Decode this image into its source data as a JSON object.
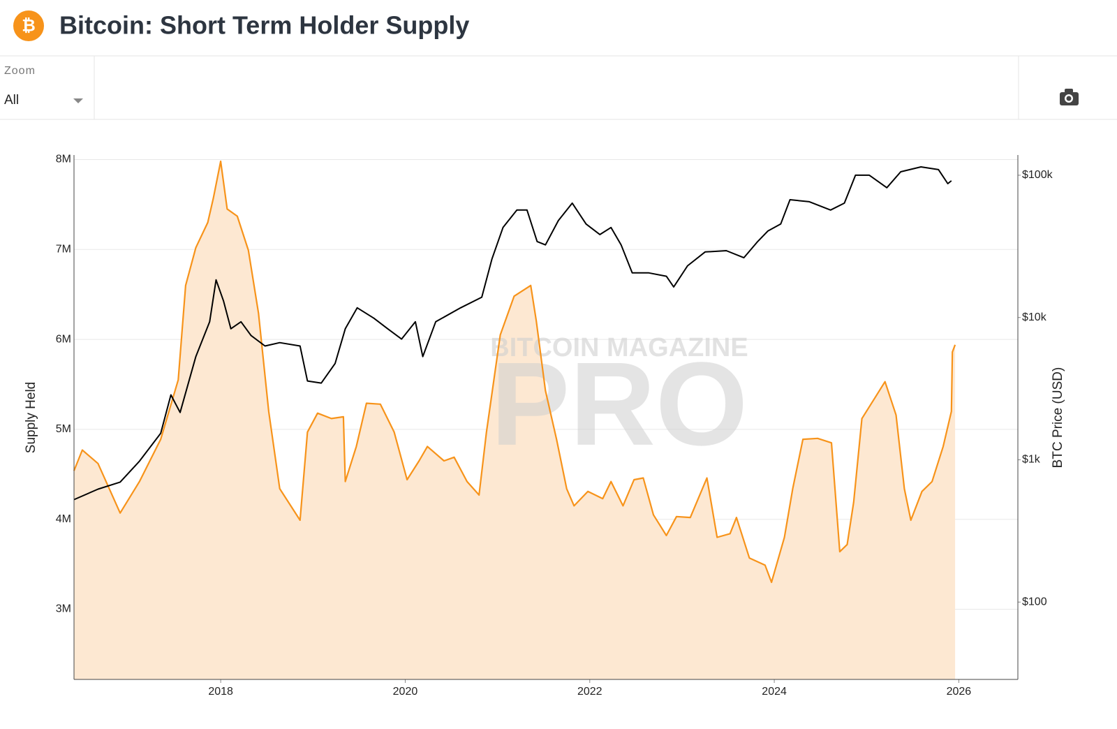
{
  "header": {
    "title": "Bitcoin: Short Term Holder Supply"
  },
  "controls": {
    "zoom_label": "Zoom",
    "zoom_value": "All"
  },
  "chart_data": {
    "type": "line",
    "y_label": "Supply Held",
    "y2_label": "BTC Price (USD)",
    "watermark": [
      "BITCOIN MAGAZINE",
      "PRO"
    ],
    "xlim": [
      2016.41,
      2026.64
    ],
    "xticks": [
      2018,
      2020,
      2022,
      2024,
      2026
    ],
    "ylim": [
      2220000,
      8050000
    ],
    "yticks": [
      {
        "value": 3000000,
        "label": "3M"
      },
      {
        "value": 4000000,
        "label": "4M"
      },
      {
        "value": 5000000,
        "label": "5M"
      },
      {
        "value": 6000000,
        "label": "6M"
      },
      {
        "value": 7000000,
        "label": "7M"
      },
      {
        "value": 8000000,
        "label": "8M"
      }
    ],
    "y2lim": [
      28.6,
      138700
    ],
    "y2log": true,
    "y2ticks": [
      {
        "value": 100,
        "label": "$100"
      },
      {
        "value": 1000,
        "label": "$1k"
      },
      {
        "value": 10000,
        "label": "$10k"
      },
      {
        "value": 100000,
        "label": "$100k"
      }
    ],
    "grid": true,
    "series": [
      {
        "name": "Short Term Holder Supply",
        "color": "#f7931a",
        "fill": "#fde8d2",
        "x": [
          2016.41,
          2016.5,
          2016.67,
          2016.91,
          2017.12,
          2017.35,
          2017.54,
          2017.62,
          2017.73,
          2017.86,
          2017.92,
          2018.0,
          2018.07,
          2018.18,
          2018.3,
          2018.41,
          2018.52,
          2018.64,
          2018.86,
          2018.94,
          2019.05,
          2019.2,
          2019.33,
          2019.35,
          2019.47,
          2019.58,
          2019.73,
          2019.88,
          2020.02,
          2020.15,
          2020.24,
          2020.42,
          2020.53,
          2020.67,
          2020.8,
          2020.88,
          2021.03,
          2021.18,
          2021.36,
          2021.42,
          2021.52,
          2021.64,
          2021.75,
          2021.83,
          2021.98,
          2022.14,
          2022.23,
          2022.36,
          2022.48,
          2022.58,
          2022.69,
          2022.83,
          2022.94,
          2023.09,
          2023.27,
          2023.38,
          2023.52,
          2023.59,
          2023.73,
          2023.9,
          2023.97,
          2024.11,
          2024.2,
          2024.31,
          2024.47,
          2024.62,
          2024.71,
          2024.79,
          2024.86,
          2024.95,
          2025.09,
          2025.2,
          2025.32,
          2025.41,
          2025.48,
          2025.6,
          2025.71,
          2025.83,
          2025.92,
          2025.93,
          2025.96
        ],
        "values": [
          4540000,
          4770000,
          4620000,
          4070000,
          4420000,
          4890000,
          5550000,
          6600000,
          7020000,
          7300000,
          7570000,
          7980000,
          7450000,
          7370000,
          6990000,
          6290000,
          5200000,
          4340000,
          3990000,
          4970000,
          5180000,
          5120000,
          5140000,
          4420000,
          4810000,
          5290000,
          5280000,
          4970000,
          4440000,
          4650000,
          4810000,
          4650000,
          4690000,
          4420000,
          4270000,
          4970000,
          6050000,
          6480000,
          6600000,
          6210000,
          5430000,
          4890000,
          4340000,
          4150000,
          4310000,
          4230000,
          4420000,
          4150000,
          4440000,
          4460000,
          4050000,
          3820000,
          4030000,
          4020000,
          4460000,
          3800000,
          3840000,
          4020000,
          3570000,
          3490000,
          3300000,
          3800000,
          4340000,
          4890000,
          4900000,
          4850000,
          3640000,
          3720000,
          4190000,
          5120000,
          5350000,
          5530000,
          5160000,
          4340000,
          3990000,
          4310000,
          4420000,
          4810000,
          5200000,
          5860000,
          5940000
        ]
      },
      {
        "name": "BTC Price",
        "color": "#000000",
        "axis": "y2",
        "x": [
          2016.41,
          2016.67,
          2016.91,
          2017.12,
          2017.35,
          2017.46,
          2017.56,
          2017.73,
          2017.88,
          2017.95,
          2018.03,
          2018.11,
          2018.22,
          2018.33,
          2018.48,
          2018.64,
          2018.86,
          2018.94,
          2019.09,
          2019.24,
          2019.35,
          2019.48,
          2019.66,
          2019.81,
          2019.96,
          2020.11,
          2020.19,
          2020.33,
          2020.6,
          2020.83,
          2020.94,
          2021.06,
          2021.21,
          2021.32,
          2021.43,
          2021.52,
          2021.66,
          2021.81,
          2021.96,
          2022.11,
          2022.23,
          2022.34,
          2022.46,
          2022.64,
          2022.83,
          2022.91,
          2023.06,
          2023.25,
          2023.48,
          2023.67,
          2023.82,
          2023.93,
          2024.07,
          2024.17,
          2024.38,
          2024.61,
          2024.76,
          2024.88,
          2025.03,
          2025.22,
          2025.37,
          2025.59,
          2025.78,
          2025.88,
          2025.92
        ],
        "values": [
          525,
          622,
          697,
          978,
          1535,
          2860,
          2150,
          5310,
          9340,
          18400,
          13100,
          8340,
          9340,
          7460,
          6310,
          6660,
          6310,
          3580,
          3460,
          4750,
          8340,
          11700,
          9890,
          8340,
          7050,
          9340,
          5310,
          9340,
          11700,
          13900,
          25800,
          42900,
          56900,
          56900,
          34200,
          32400,
          48000,
          63700,
          45400,
          38300,
          42900,
          32400,
          20600,
          20600,
          19500,
          16400,
          23100,
          28900,
          29500,
          26300,
          34200,
          40500,
          45400,
          67300,
          65100,
          56900,
          63700,
          100000,
          100000,
          81700,
          105700,
          114500,
          109500,
          87300,
          91400
        ]
      }
    ]
  }
}
